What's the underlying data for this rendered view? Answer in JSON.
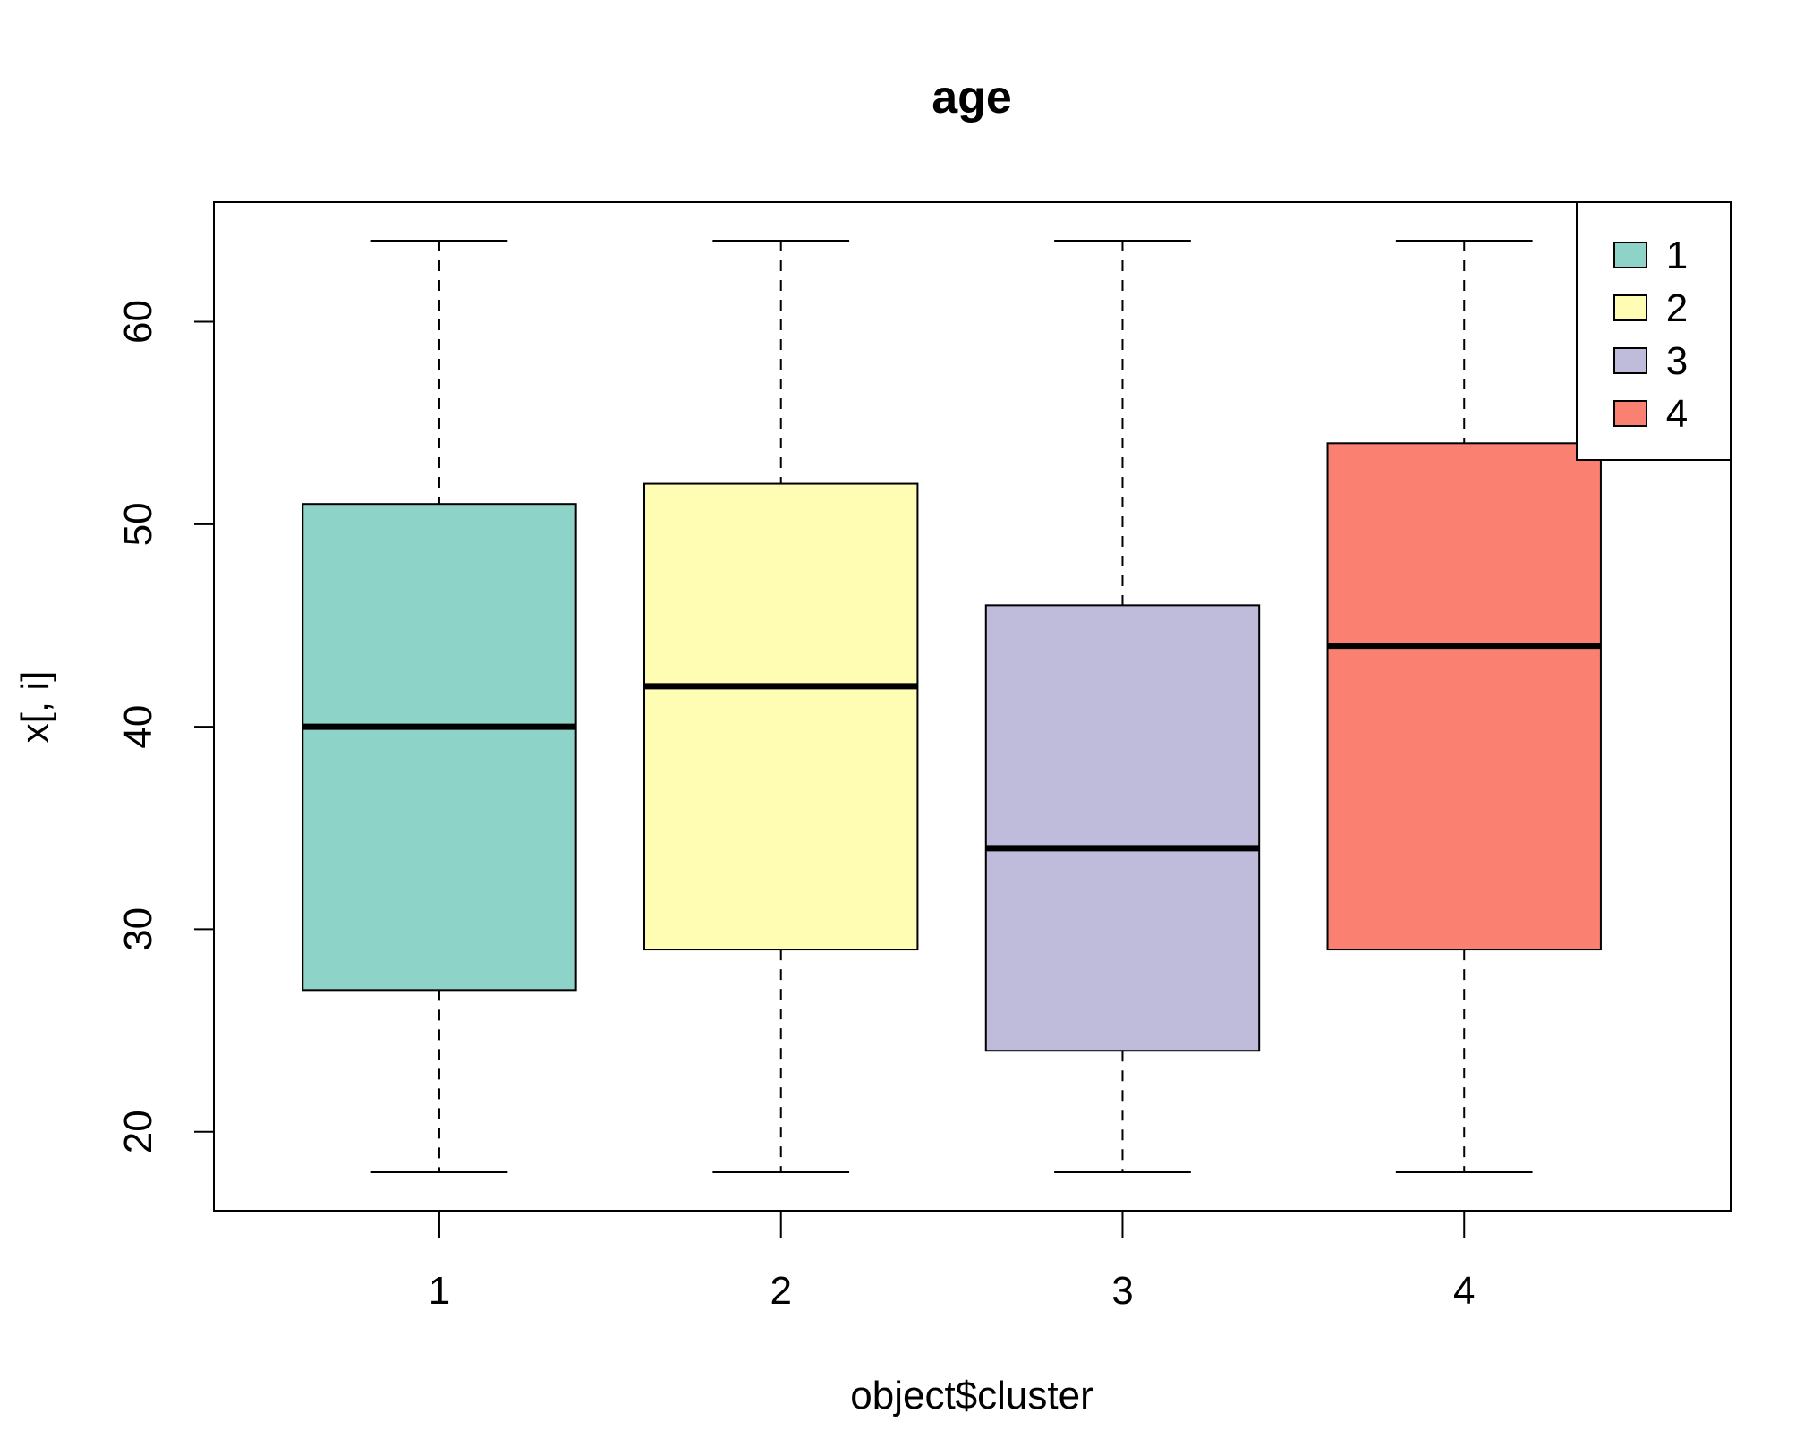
{
  "chart_data": {
    "type": "boxplot",
    "title": "age",
    "xlabel": "object$cluster",
    "ylabel": "x[, i]",
    "categories": [
      "1",
      "2",
      "3",
      "4"
    ],
    "x_tick_labels": [
      "1",
      "2",
      "3",
      "4"
    ],
    "y_ticks": [
      20,
      30,
      40,
      50,
      60
    ],
    "y_tick_labels": [
      "20",
      "30",
      "40",
      "50",
      "60"
    ],
    "ylim": [
      16.1,
      65.9
    ],
    "grid": false,
    "legend": {
      "position": "top-right",
      "entries": [
        {
          "label": "1",
          "color": "#8DD3C7"
        },
        {
          "label": "2",
          "color": "#FFFCB3"
        },
        {
          "label": "3",
          "color": "#BFBBDA"
        },
        {
          "label": "4",
          "color": "#FA8072"
        }
      ]
    },
    "boxes": [
      {
        "category": "1",
        "whisker_low": 18,
        "q1": 27,
        "median": 40,
        "q3": 51,
        "whisker_high": 64,
        "color": "#8DD3C7"
      },
      {
        "category": "2",
        "whisker_low": 18,
        "q1": 29,
        "median": 42,
        "q3": 52,
        "whisker_high": 64,
        "color": "#FFFCB3"
      },
      {
        "category": "3",
        "whisker_low": 18,
        "q1": 24,
        "median": 34,
        "q3": 46,
        "whisker_high": 64,
        "color": "#BFBBDA"
      },
      {
        "category": "4",
        "whisker_low": 18,
        "q1": 29,
        "median": 44,
        "q3": 54,
        "whisker_high": 64,
        "color": "#FA8072"
      }
    ]
  }
}
